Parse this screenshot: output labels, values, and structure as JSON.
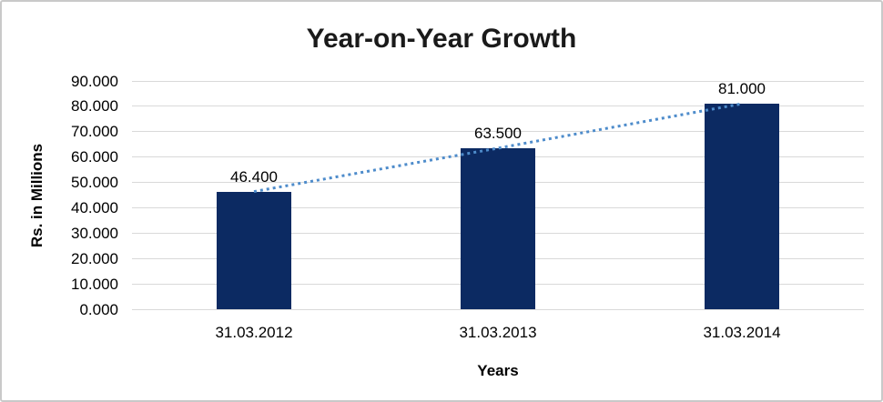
{
  "chart_data": {
    "type": "bar",
    "title": "Year-on-Year Growth",
    "categories": [
      "31.03.2012",
      "31.03.2013",
      "31.03.2014"
    ],
    "values": [
      46.4,
      63.5,
      81.0
    ],
    "value_labels": [
      "46.400",
      "63.500",
      "81.000"
    ],
    "xlabel": "Years",
    "ylabel": "Rs. in Millions",
    "ylim": [
      0,
      90
    ],
    "ytick_step": 10,
    "ytick_labels": [
      "90.000",
      "80.000",
      "70.000",
      "60.000",
      "50.000",
      "40.000",
      "30.000",
      "20.000",
      "10.000",
      "0.000"
    ],
    "grid": "horizontal",
    "legend": "none",
    "trendline": {
      "style": "dotted",
      "connects": "bar-tops",
      "values": [
        46.4,
        63.5,
        81.0
      ]
    },
    "colors": {
      "bar": "#0c2a62",
      "trendline": "#4e8ccb",
      "gridline": "#d9d9d9",
      "title_text": "#1a1a1a",
      "axis_text": "#000000",
      "frame_border": "#c9c9c9",
      "background": "#ffffff"
    }
  }
}
